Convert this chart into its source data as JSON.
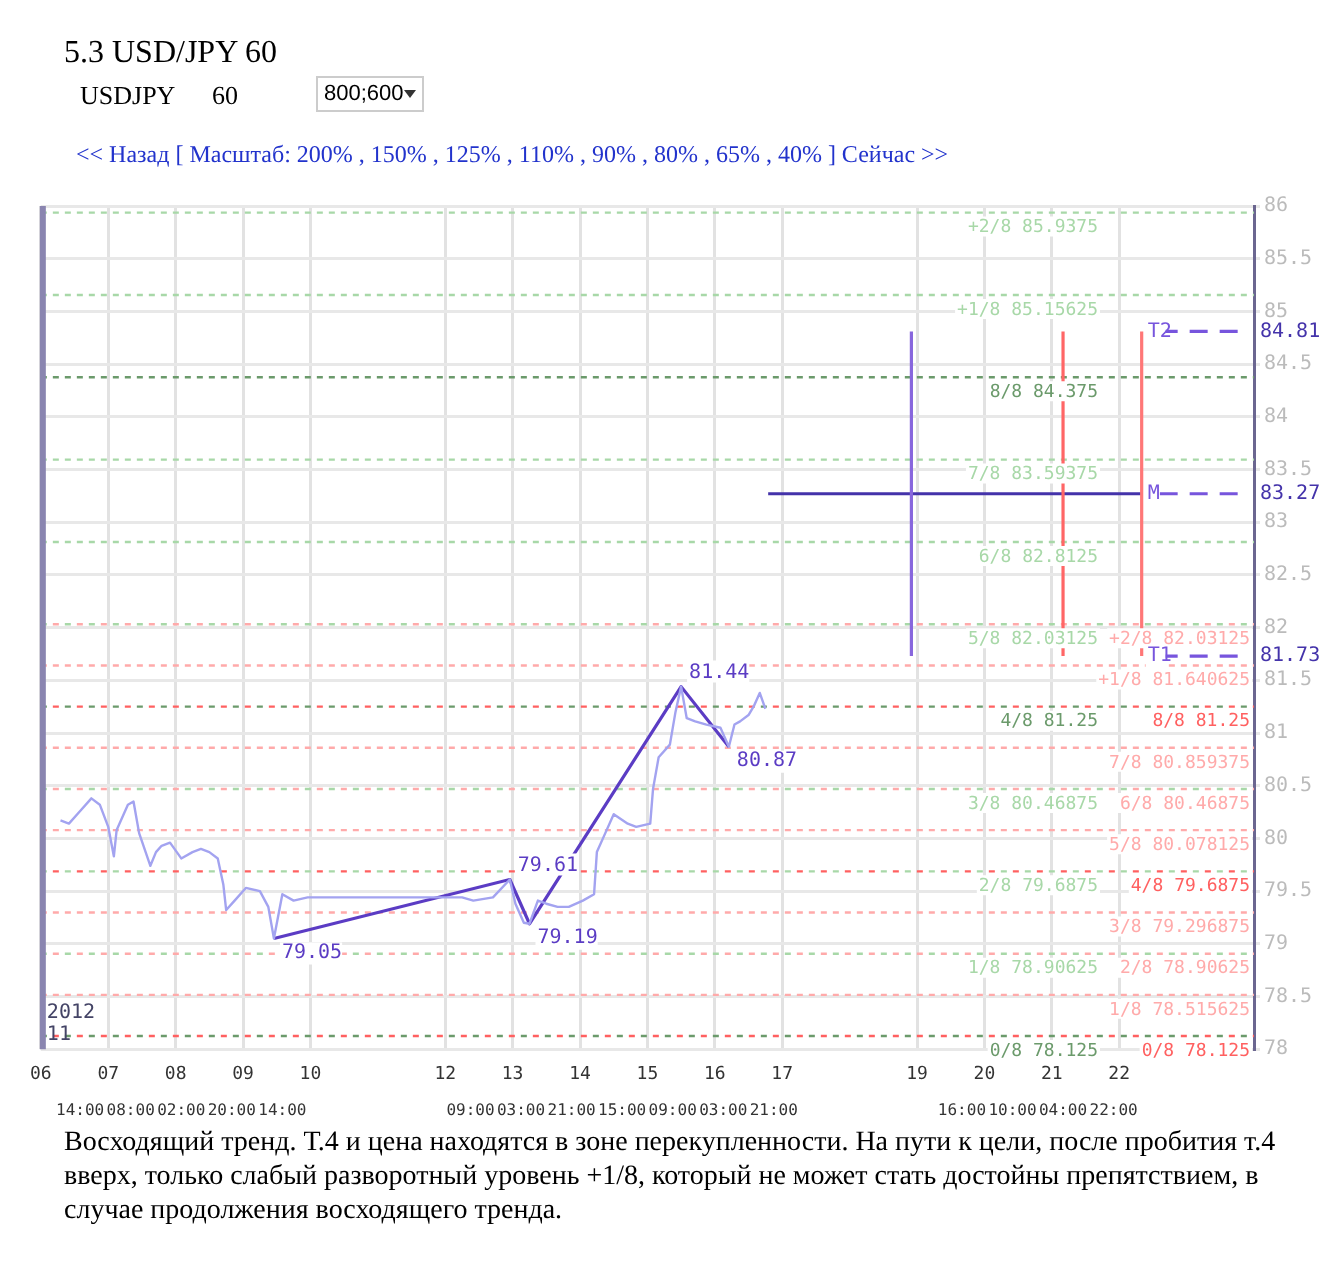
{
  "chart_data": {
    "type": "line",
    "title": "5.3 USD/JPY 60",
    "annotations": [
      "USDJPY",
      "60",
      "800;600",
      "<< Назад [ Масштаб: 200% , 150% , 125% , 110% , 90% , 80% , 65% , 40% ] Сейчас >>",
      "2012",
      "11",
      "Восходящий тренд. Т.4 и цена находятся в зоне перекупленности. На пути к цели, после пробития т.4 вверх, только слабый разворотный уровень +1/8, который не может стать достойны препятствием, в случае продолжения восходящего тренда.",
      {
        "text": "84.81",
        "x": "2012-11-24T00:00",
        "y": 84.81
      },
      {
        "text": "83.27",
        "x": "2012-11-24T00:00",
        "y": 83.27
      },
      {
        "text": "81.73",
        "x": "2012-11-24T00:00",
        "y": 81.73
      }
    ],
    "marker": "none",
    "grid": true,
    "xlim": [
      "2012-11-06T00:00",
      "2012-11-24T00:00"
    ],
    "xticks": [
      {
        "value": "2012-11-06T14:00",
        "label": "14:00"
      },
      {
        "value": "2012-11-07T08:00",
        "label": "08:00"
      },
      {
        "value": "2012-11-08T02:00",
        "label": "02:00"
      },
      {
        "value": "2012-11-08T20:00",
        "label": "20:00"
      },
      {
        "value": "2012-11-09T14:00",
        "label": "14:00"
      },
      {
        "value": "2012-11-12T09:00",
        "label": "09:00"
      },
      {
        "value": "2012-11-13T03:00",
        "label": "03:00"
      },
      {
        "value": "2012-11-13T21:00",
        "label": "21:00"
      },
      {
        "value": "2012-11-14T15:00",
        "label": "15:00"
      },
      {
        "value": "2012-11-15T09:00",
        "label": "09:00"
      },
      {
        "value": "2012-11-16T03:00",
        "label": "03:00"
      },
      {
        "value": "2012-11-16T21:00",
        "label": "21:00"
      },
      {
        "value": "2012-11-19T16:00",
        "label": "16:00"
      },
      {
        "value": "2012-11-20T10:00",
        "label": "10:00"
      },
      {
        "value": "2012-11-21T04:00",
        "label": "04:00"
      },
      {
        "value": "2012-11-21T22:00",
        "label": "22:00"
      }
    ],
    "x2lim": [
      "2012-11-06T00:00",
      "2012-11-24T00:00"
    ],
    "x2ticks": [
      {
        "value": "2012-11-06",
        "label": "06"
      },
      {
        "value": "2012-11-07",
        "label": "07"
      },
      {
        "value": "2012-11-08",
        "label": "08"
      },
      {
        "value": "2012-11-09",
        "label": "09"
      },
      {
        "value": "2012-11-10",
        "label": "10"
      },
      {
        "value": "2012-11-12",
        "label": "12"
      },
      {
        "value": "2012-11-13",
        "label": "13"
      },
      {
        "value": "2012-11-14",
        "label": "14"
      },
      {
        "value": "2012-11-15",
        "label": "15"
      },
      {
        "value": "2012-11-16",
        "label": "16"
      },
      {
        "value": "2012-11-17",
        "label": "17"
      },
      {
        "value": "2012-11-19",
        "label": "19"
      },
      {
        "value": "2012-11-20",
        "label": "20"
      },
      {
        "value": "2012-11-21",
        "label": "21"
      },
      {
        "value": "2012-11-22",
        "label": "22"
      }
    ],
    "ylim": [
      78,
      86
    ],
    "yticks": [
      78,
      78.5,
      79,
      79.5,
      80,
      80.5,
      81,
      81.5,
      82,
      82.5,
      83,
      83.5,
      84,
      84.5,
      85,
      85.5,
      86
    ],
    "series": [
      {
        "type": "line",
        "color": "#a3a3f0",
        "x": [
          "2012-11-06T07:00",
          "2012-11-06T10:00",
          "2012-11-06T14:00",
          "2012-11-06T18:00",
          "2012-11-06T21:00",
          "2012-11-07T00:00",
          "2012-11-07T02:00",
          "2012-11-07T03:00",
          "2012-11-07T07:00",
          "2012-11-07T09:00",
          "2012-11-07T11:00",
          "2012-11-07T15:00",
          "2012-11-07T17:00",
          "2012-11-07T19:00",
          "2012-11-07T22:00",
          "2012-11-08T02:00",
          "2012-11-08T06:00",
          "2012-11-08T09:00",
          "2012-11-08T12:00",
          "2012-11-08T15:00",
          "2012-11-08T17:00",
          "2012-11-08T18:00",
          "2012-11-08T21:00",
          "2012-11-09T01:00",
          "2012-11-09T06:00",
          "2012-11-09T09:00",
          "2012-11-09T11:00",
          "2012-11-09T14:00",
          "2012-11-09T18:00",
          "2012-11-09T23:00",
          "2012-11-12T06:00",
          "2012-11-12T10:00",
          "2012-11-12T17:00",
          "2012-11-12T23:00",
          "2012-11-13T01:00",
          "2012-11-13T04:00",
          "2012-11-13T06:00",
          "2012-11-13T09:00",
          "2012-11-13T12:00",
          "2012-11-13T16:00",
          "2012-11-13T20:00",
          "2012-11-14T01:00",
          "2012-11-14T05:00",
          "2012-11-14T06:00",
          "2012-11-14T09:00",
          "2012-11-14T12:00",
          "2012-11-14T17:00",
          "2012-11-14T20:00",
          "2012-11-15T01:00",
          "2012-11-15T02:00",
          "2012-11-15T04:00",
          "2012-11-15T08:00",
          "2012-11-15T10:00",
          "2012-11-15T12:00",
          "2012-11-15T14:00",
          "2012-11-15T17:00",
          "2012-11-15T21:00",
          "2012-11-16T02:00",
          "2012-11-16T05:00",
          "2012-11-16T07:00",
          "2012-11-16T09:00",
          "2012-11-16T12:00",
          "2012-11-16T14:00",
          "2012-11-16T16:00",
          "2012-11-16T18:00"
        ],
        "values": [
          80.17,
          80.14,
          80.26,
          80.38,
          80.32,
          80.11,
          79.83,
          80.08,
          80.32,
          80.35,
          80.05,
          79.74,
          79.87,
          79.93,
          79.96,
          79.81,
          79.87,
          79.9,
          79.87,
          79.81,
          79.56,
          79.32,
          79.41,
          79.53,
          79.5,
          79.35,
          79.05,
          79.47,
          79.41,
          79.44,
          79.44,
          79.41,
          79.44,
          79.61,
          79.38,
          79.2,
          79.19,
          79.41,
          79.38,
          79.35,
          79.35,
          79.41,
          79.47,
          79.87,
          80.05,
          80.23,
          80.14,
          80.11,
          80.14,
          80.47,
          80.77,
          80.89,
          81.2,
          81.44,
          81.14,
          81.11,
          81.08,
          81.05,
          80.87,
          81.08,
          81.11,
          81.17,
          81.26,
          81.38,
          81.23
        ]
      },
      {
        "type": "line",
        "color": "#5b3cc4",
        "x": [
          "2012-11-09T11:00",
          "2012-11-12T23:00",
          "2012-11-13T06:00",
          "2012-11-15T12:00",
          "2012-11-16T05:00"
        ],
        "values": [
          79.05,
          79.61,
          79.19,
          81.44,
          80.87
        ],
        "value_labels": [
          "79.05",
          "79.61",
          "79.19",
          "81.44",
          "80.87"
        ]
      },
      {
        "type": "line",
        "color": "#8866dd",
        "x": [
          "2012-11-18T22:00",
          "2012-11-18T22:00"
        ],
        "values": [
          81.73,
          84.81
        ]
      },
      {
        "type": "line",
        "color": "#ff6666",
        "x": [
          "2012-11-21T04:00",
          "2012-11-21T04:00"
        ],
        "values": [
          81.73,
          84.81
        ]
      },
      {
        "type": "line",
        "color": "#ff7777",
        "x": [
          "2012-11-22T08:00",
          "2012-11-22T08:00"
        ],
        "values": [
          81.73,
          84.81
        ]
      },
      {
        "type": "line",
        "color": "#4433aa",
        "x": [
          "2012-11-16T19:00",
          "2012-11-22T08:00"
        ],
        "values": [
          83.27,
          83.27
        ]
      }
    ],
    "ref_lines": [
      {
        "axis": "y",
        "value": 85.9375,
        "label": "+2/8 85.9375",
        "color": "#a8d8a8",
        "line_style": "dotted"
      },
      {
        "axis": "y",
        "value": 85.15625,
        "label": "+1/8 85.15625",
        "color": "#a8d8a8",
        "line_style": "dotted"
      },
      {
        "axis": "y",
        "value": 84.375,
        "label": "8/8 84.375",
        "color": "#6b9a6b",
        "line_style": "dotted"
      },
      {
        "axis": "y",
        "value": 83.59375,
        "label": "7/8 83.59375",
        "color": "#a8d8a8",
        "line_style": "dotted"
      },
      {
        "axis": "y",
        "value": 82.8125,
        "label": "6/8 82.8125",
        "color": "#a8d8a8",
        "line_style": "dotted"
      },
      {
        "axis": "y",
        "value": 82.03125,
        "label": "5/8 82.03125",
        "color": "#a8d8a8",
        "line_style": "dotted"
      },
      {
        "axis": "y",
        "value": 81.25,
        "label": "4/8 81.25",
        "color": "#6b9a6b",
        "line_style": "dotted"
      },
      {
        "axis": "y",
        "value": 80.46875,
        "label": "3/8 80.46875",
        "color": "#a8d8a8",
        "line_style": "dotted"
      },
      {
        "axis": "y",
        "value": 79.6875,
        "label": "2/8 79.6875",
        "color": "#a8d8a8",
        "line_style": "dotted"
      },
      {
        "axis": "y",
        "value": 78.90625,
        "label": "1/8 78.90625",
        "color": "#a8d8a8",
        "line_style": "dotted"
      },
      {
        "axis": "y",
        "value": 78.125,
        "label": "0/8 78.125",
        "color": "#6b9a6b",
        "line_style": "dotted"
      },
      {
        "axis": "y",
        "value": 82.03125,
        "label": "+2/8 82.03125",
        "color": "#ffaaaa",
        "line_style": "dotted"
      },
      {
        "axis": "y",
        "value": 81.640625,
        "label": "+1/8 81.640625",
        "color": "#ffaaaa",
        "line_style": "dotted"
      },
      {
        "axis": "y",
        "value": 81.25,
        "label": "8/8 81.25",
        "color": "#ff6060",
        "line_style": "dotted"
      },
      {
        "axis": "y",
        "value": 80.859375,
        "label": "7/8 80.859375",
        "color": "#ffaaaa",
        "line_style": "dotted"
      },
      {
        "axis": "y",
        "value": 80.46875,
        "label": "6/8 80.46875",
        "color": "#ffaaaa",
        "line_style": "dotted"
      },
      {
        "axis": "y",
        "value": 80.078125,
        "label": "5/8 80.078125",
        "color": "#ffaaaa",
        "line_style": "dotted"
      },
      {
        "axis": "y",
        "value": 79.6875,
        "label": "4/8 79.6875",
        "color": "#ff6060",
        "line_style": "dotted"
      },
      {
        "axis": "y",
        "value": 79.296875,
        "label": "3/8 79.296875",
        "color": "#ffaaaa",
        "line_style": "dotted"
      },
      {
        "axis": "y",
        "value": 78.90625,
        "label": "2/8 78.90625",
        "color": "#ffaaaa",
        "line_style": "dotted"
      },
      {
        "axis": "y",
        "value": 78.515625,
        "label": "1/8 78.515625",
        "color": "#ffaaaa",
        "line_style": "dotted"
      },
      {
        "axis": "y",
        "value": 78.125,
        "label": "0/8 78.125",
        "color": "#ff6060",
        "line_style": "dotted"
      },
      {
        "axis": "y",
        "value": 84.81,
        "label": "T2",
        "color": "#7755dd",
        "line_style": "dashed"
      },
      {
        "axis": "y",
        "value": 83.27,
        "label": "M",
        "color": "#7755dd",
        "line_style": "dashed"
      },
      {
        "axis": "y",
        "value": 81.73,
        "label": "T1",
        "color": "#7755dd",
        "line_style": "dashed"
      }
    ]
  }
}
